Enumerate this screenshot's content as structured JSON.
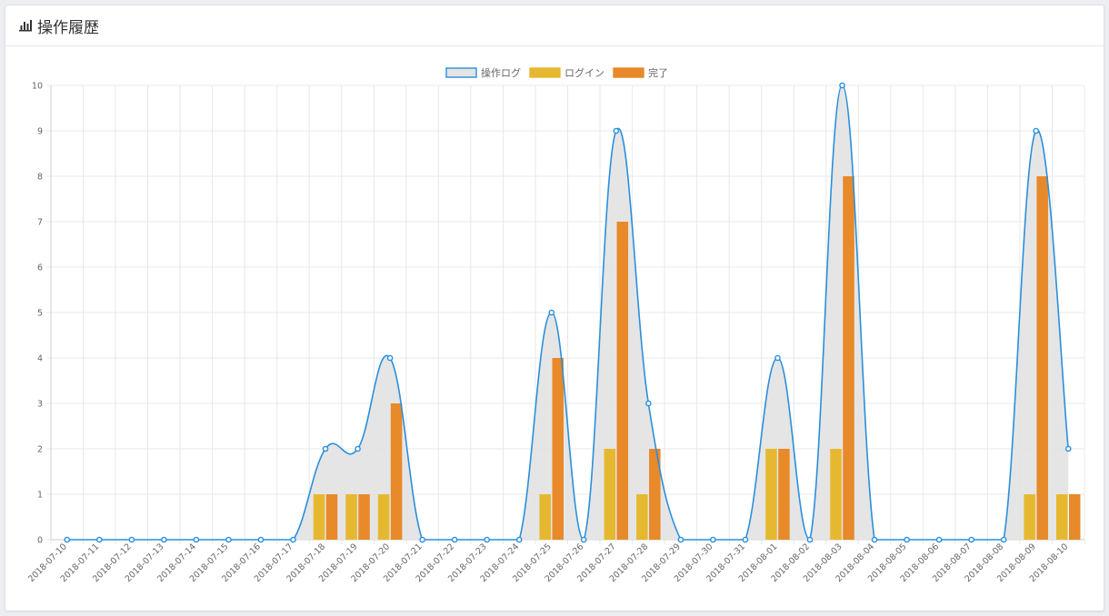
{
  "page": {
    "title": "操作履歴",
    "icon": "bar-chart-icon"
  },
  "colors": {
    "line": "#2a8fdc",
    "area": "#e4e4e4",
    "login": "#e6b830",
    "complete": "#e8892a"
  },
  "chart_data": {
    "type": "bar",
    "legend_position": "top-center",
    "grid": true,
    "ylim": [
      0,
      10
    ],
    "yticks": [
      0,
      1,
      2,
      3,
      4,
      5,
      6,
      7,
      8,
      9,
      10
    ],
    "categories": [
      "2018-07-10",
      "2018-07-11",
      "2018-07-12",
      "2018-07-13",
      "2018-07-14",
      "2018-07-15",
      "2018-07-16",
      "2018-07-17",
      "2018-07-18",
      "2018-07-19",
      "2018-07-20",
      "2018-07-21",
      "2018-07-22",
      "2018-07-23",
      "2018-07-24",
      "2018-07-25",
      "2018-07-26",
      "2018-07-27",
      "2018-07-28",
      "2018-07-29",
      "2018-07-30",
      "2018-07-31",
      "2018-08-01",
      "2018-08-02",
      "2018-08-03",
      "2018-08-04",
      "2018-08-05",
      "2018-08-06",
      "2018-08-07",
      "2018-08-08",
      "2018-08-09",
      "2018-08-10"
    ],
    "series": [
      {
        "name": "操作ログ",
        "type": "line",
        "values": [
          0,
          0,
          0,
          0,
          0,
          0,
          0,
          0,
          2,
          2,
          4,
          0,
          0,
          0,
          0,
          5,
          0,
          9,
          3,
          0,
          0,
          0,
          4,
          0,
          10,
          0,
          0,
          0,
          0,
          0,
          9,
          2
        ]
      },
      {
        "name": "ログイン",
        "type": "bar",
        "values": [
          0,
          0,
          0,
          0,
          0,
          0,
          0,
          0,
          1,
          1,
          1,
          0,
          0,
          0,
          0,
          1,
          0,
          2,
          1,
          0,
          0,
          0,
          2,
          0,
          2,
          0,
          0,
          0,
          0,
          0,
          1,
          1
        ]
      },
      {
        "name": "完了",
        "type": "bar",
        "values": [
          0,
          0,
          0,
          0,
          0,
          0,
          0,
          0,
          1,
          1,
          3,
          0,
          0,
          0,
          0,
          4,
          0,
          7,
          2,
          0,
          0,
          0,
          2,
          0,
          8,
          0,
          0,
          0,
          0,
          0,
          8,
          1
        ]
      }
    ]
  }
}
